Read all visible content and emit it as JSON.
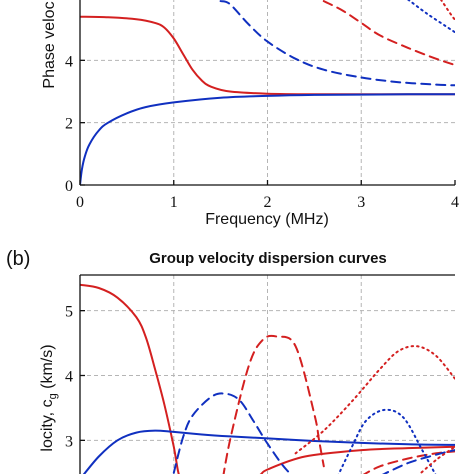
{
  "chart_data": [
    {
      "type": "line",
      "panel_label": "",
      "title": "",
      "xlabel": "Frequency (MHz)",
      "ylabel": "Phase veloc",
      "xlim": [
        0,
        4
      ],
      "ylim": [
        0,
        6
      ],
      "x_ticks": [
        "0",
        "1",
        "2",
        "3",
        "4"
      ],
      "y_ticks": [
        "0",
        "2",
        "4"
      ],
      "y_tick_values": [
        0,
        2,
        4
      ],
      "grid": true,
      "series": [
        {
          "color": "#d42020",
          "style": "solid",
          "x": [
            0,
            0.3,
            0.6,
            0.8,
            0.9,
            1.0,
            1.1,
            1.2,
            1.3,
            1.4,
            1.6,
            2.0,
            2.5,
            3.0,
            3.5,
            4.0
          ],
          "y": [
            5.4,
            5.38,
            5.32,
            5.2,
            5.05,
            4.7,
            4.2,
            3.7,
            3.35,
            3.15,
            3.0,
            2.93,
            2.91,
            2.91,
            2.91,
            2.91
          ]
        },
        {
          "color": "#1030c0",
          "style": "solid",
          "x": [
            0,
            0.02,
            0.05,
            0.1,
            0.2,
            0.3,
            0.5,
            0.7,
            1.0,
            1.5,
            2.0,
            2.5,
            3.0,
            3.5,
            4.0
          ],
          "y": [
            0,
            0.5,
            0.9,
            1.3,
            1.75,
            2.0,
            2.3,
            2.5,
            2.65,
            2.8,
            2.86,
            2.89,
            2.9,
            2.91,
            2.91
          ]
        },
        {
          "color": "#1030c0",
          "style": "dashed",
          "x": [
            1.5,
            1.6,
            1.8,
            2.0,
            2.3,
            2.6,
            3.0,
            3.4,
            3.8,
            4.0
          ],
          "y": [
            5.9,
            5.8,
            5.15,
            4.6,
            4.05,
            3.7,
            3.45,
            3.3,
            3.22,
            3.2
          ]
        },
        {
          "color": "#d42020",
          "style": "dashed",
          "x": [
            2.6,
            2.8,
            3.0,
            3.2,
            3.5,
            3.8,
            4.0
          ],
          "y": [
            5.9,
            5.6,
            5.2,
            4.8,
            4.4,
            4.05,
            3.85
          ]
        },
        {
          "color": "#1030c0",
          "style": "dotted",
          "x": [
            3.5,
            3.7,
            3.9,
            4.0
          ],
          "y": [
            5.95,
            5.5,
            5.1,
            4.9
          ]
        },
        {
          "color": "#d42020",
          "style": "dotted",
          "x": [
            3.85,
            3.95,
            4.0
          ],
          "y": [
            5.95,
            5.5,
            5.3
          ]
        }
      ]
    },
    {
      "type": "line",
      "panel_label": "(b)",
      "title": "Group velocity dispersion curves",
      "xlabel": "",
      "ylabel": "locity, c",
      "ylabel_subscript": "g",
      "ylabel_unit": " (km/s)",
      "xlim": [
        0,
        4
      ],
      "ylim": [
        2.45,
        5.55
      ],
      "x_ticks": [],
      "y_ticks": [
        "3",
        "4",
        "5"
      ],
      "y_tick_values": [
        3,
        4,
        5
      ],
      "grid": true,
      "series": [
        {
          "color": "#d42020",
          "style": "solid",
          "x": [
            0,
            0.2,
            0.4,
            0.6,
            0.7,
            0.8,
            0.9,
            1.0,
            1.05,
            1.1,
            1.2,
            1.4,
            1.6,
            1.9,
            2.0,
            2.4,
            3.0,
            3.5,
            4.0
          ],
          "y": [
            5.4,
            5.35,
            5.2,
            4.9,
            4.6,
            4.1,
            3.55,
            2.9,
            2.5,
            2.35,
            2.2,
            2.2,
            2.28,
            2.45,
            2.55,
            2.75,
            2.85,
            2.88,
            2.9
          ]
        },
        {
          "color": "#1030c0",
          "style": "solid",
          "x": [
            0,
            0.2,
            0.4,
            0.6,
            0.8,
            1.0,
            1.3,
            1.6,
            2.0,
            2.5,
            3.0,
            3.5,
            4.0
          ],
          "y": [
            2.4,
            2.75,
            3.0,
            3.12,
            3.15,
            3.13,
            3.09,
            3.06,
            3.03,
            2.99,
            2.96,
            2.94,
            2.93
          ]
        },
        {
          "color": "#1030c0",
          "style": "dashed",
          "x": [
            1.0,
            1.1,
            1.2,
            1.4,
            1.55,
            1.7,
            1.85,
            2.0,
            2.2,
            2.4,
            2.6,
            2.7
          ],
          "y": [
            2.5,
            3.05,
            3.38,
            3.67,
            3.72,
            3.62,
            3.3,
            2.95,
            2.55,
            2.3,
            2.2,
            2.2
          ]
        },
        {
          "color": "#d42020",
          "style": "dashed",
          "x": [
            1.5,
            1.6,
            1.8,
            1.95,
            2.1,
            2.3,
            2.5,
            2.55,
            2.6
          ],
          "y": [
            2.2,
            3.0,
            4.15,
            4.55,
            4.6,
            4.45,
            3.4,
            3.0,
            2.6
          ]
        },
        {
          "color": "#d42020",
          "style": "dashed",
          "x": [
            3.0,
            3.2,
            3.5,
            3.8,
            4.0
          ],
          "y": [
            2.45,
            2.6,
            2.72,
            2.8,
            2.83
          ]
        },
        {
          "color": "#1030c0",
          "style": "dashed",
          "x": [
            3.2,
            3.5,
            3.8,
            4.0
          ],
          "y": [
            2.45,
            2.65,
            2.78,
            2.85
          ]
        },
        {
          "color": "#d42020",
          "style": "dotted",
          "x": [
            2.3,
            2.6,
            2.9,
            3.2,
            3.4,
            3.6,
            3.8,
            4.0
          ],
          "y": [
            2.8,
            3.15,
            3.6,
            4.1,
            4.38,
            4.45,
            4.3,
            3.95
          ]
        },
        {
          "color": "#1030c0",
          "style": "dotted",
          "x": [
            2.75,
            2.9,
            3.05,
            3.25,
            3.45,
            3.65,
            3.8
          ],
          "y": [
            2.45,
            2.9,
            3.3,
            3.47,
            3.35,
            2.85,
            2.45
          ]
        },
        {
          "color": "#d42020",
          "style": "dotted",
          "x": [
            3.6,
            3.8,
            4.0
          ],
          "y": [
            2.45,
            2.7,
            2.9
          ]
        }
      ]
    }
  ]
}
